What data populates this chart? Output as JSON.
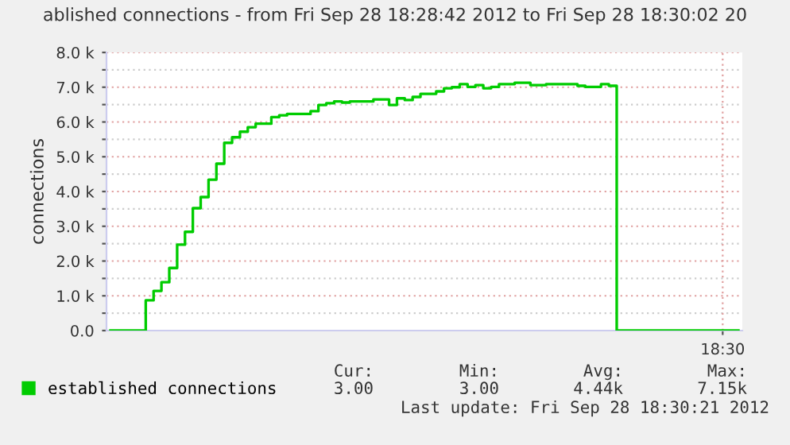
{
  "chart_data": {
    "type": "step",
    "title": "ablished connections - from Fri Sep 28 18:28:42 2012 to Fri Sep 28 18:30:02 20",
    "ylabel": "connections",
    "categories": [
      null,
      null,
      null,
      null,
      null,
      null,
      null,
      null,
      null,
      null,
      null,
      null,
      null,
      null,
      null,
      null,
      null,
      null,
      null,
      null,
      null,
      null,
      null,
      null,
      null,
      null,
      null,
      null,
      null,
      null,
      null,
      null,
      null,
      null,
      null,
      null,
      null,
      null,
      null,
      null,
      null,
      null,
      null,
      null,
      null,
      null,
      null,
      null,
      null,
      null,
      null,
      null,
      null,
      null,
      null,
      null,
      null,
      null,
      null,
      null,
      null,
      null,
      null,
      null,
      null,
      null,
      null,
      null,
      null,
      null,
      null,
      null,
      null,
      null,
      null,
      null,
      null,
      null,
      "18:30",
      null,
      null
    ],
    "series": [
      {
        "name": "established connections",
        "color": "#00cc00",
        "values": [
          0,
          0,
          0,
          0,
          0,
          870,
          1140,
          1390,
          1800,
          2470,
          2840,
          3520,
          3840,
          4340,
          4800,
          5400,
          5560,
          5720,
          5850,
          5950,
          5950,
          6140,
          6190,
          6230,
          6230,
          6230,
          6310,
          6490,
          6540,
          6590,
          6560,
          6590,
          6590,
          6590,
          6650,
          6650,
          6490,
          6680,
          6630,
          6720,
          6810,
          6810,
          6880,
          6970,
          7000,
          7090,
          7010,
          7060,
          6970,
          7010,
          7090,
          7090,
          7130,
          7130,
          7060,
          7060,
          7090,
          7090,
          7090,
          7090,
          7040,
          7010,
          7010,
          7090,
          7040,
          0,
          0,
          0,
          0,
          0,
          0,
          0,
          0,
          0,
          0,
          0,
          0,
          0,
          0,
          0,
          0
        ]
      }
    ],
    "ylim": [
      0,
      8000
    ],
    "yticks": [
      {
        "value": 0,
        "label": "0.0"
      },
      {
        "value": 500,
        "label": null
      },
      {
        "value": 1000,
        "label": "1.0 k"
      },
      {
        "value": 1500,
        "label": null
      },
      {
        "value": 2000,
        "label": "2.0 k"
      },
      {
        "value": 2500,
        "label": null
      },
      {
        "value": 3000,
        "label": "3.0 k"
      },
      {
        "value": 3500,
        "label": null
      },
      {
        "value": 4000,
        "label": "4.0 k"
      },
      {
        "value": 4500,
        "label": null
      },
      {
        "value": 5000,
        "label": "5.0 k"
      },
      {
        "value": 5500,
        "label": null
      },
      {
        "value": 6000,
        "label": "6.0 k"
      },
      {
        "value": 6500,
        "label": null
      },
      {
        "value": 7000,
        "label": "7.0 k"
      },
      {
        "value": 7500,
        "label": null
      },
      {
        "value": 8000,
        "label": "8.0 k"
      }
    ],
    "grid": true,
    "legend": "bottom",
    "line_style": "solid",
    "marker": "none",
    "annotations": [
      "Cur:",
      "Min:",
      "Avg:",
      "Max:",
      "3.00",
      "3.00",
      "4.44k",
      "7.15k",
      "Last update: Fri Sep 28 18:30:21 2012"
    ]
  }
}
